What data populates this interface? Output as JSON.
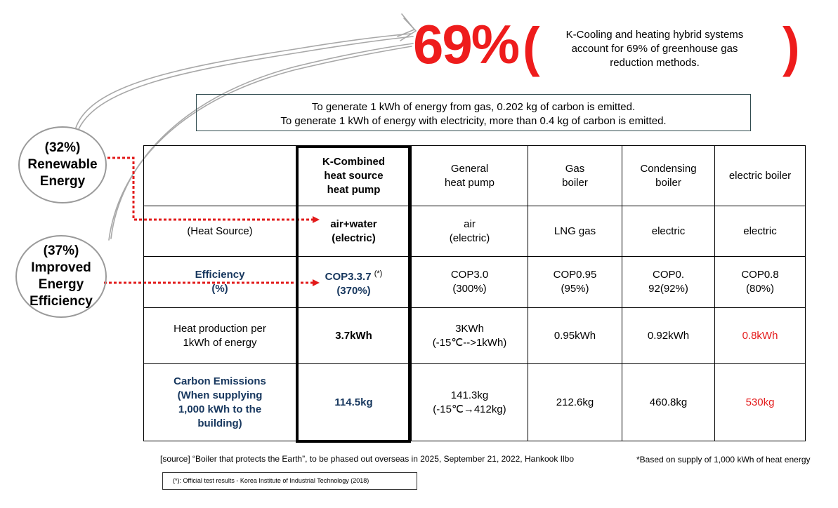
{
  "headline": {
    "percent": "69%",
    "open_paren": "(",
    "close_paren": ")",
    "line1": "K-Cooling and heating hybrid systems",
    "line2": "account for 69% of greenhouse gas",
    "line3": "reduction methods."
  },
  "info": {
    "line1": "To generate 1 kWh of energy from gas, 0.202 kg of carbon is emitted.",
    "line2": "To generate 1 kWh of energy with electricity, more than 0.4 kg of carbon is emitted."
  },
  "bubbles": {
    "renewable": {
      "pct": "(32%)",
      "l1": "Renewable",
      "l2": "Energy"
    },
    "efficiency": {
      "pct": "(37%)",
      "l1": "Improved",
      "l2": "Energy",
      "l3": "Efficiency"
    }
  },
  "table": {
    "header": {
      "k_l1": "K-Combined",
      "k_l2": "heat source",
      "k_l3": "heat pump",
      "gen_l1": "General",
      "gen_l2": "heat pump",
      "gas_l1": "Gas",
      "gas_l2": "boiler",
      "cond_l1": "Condensing",
      "cond_l2": "boiler",
      "elec": "electric boiler"
    },
    "source_row": {
      "label": "(Heat Source)",
      "k_l1": "air+water",
      "k_l2": "(electric)",
      "gen_l1": "air",
      "gen_l2": "(electric)",
      "gas": "LNG gas",
      "cond": "electric",
      "elec": "electric"
    },
    "eff_row": {
      "label_l1": "Efficiency",
      "label_l2": "(%)",
      "k_l1": "COP3.3.7",
      "k_sup": "(*)",
      "k_l2": "(370%)",
      "gen_l1": "COP3.0",
      "gen_l2": "(300%)",
      "gas_l1": "COP0.95",
      "gas_l2": "(95%)",
      "cond_l1": "COP0.",
      "cond_l2": "92(92%)",
      "elec_l1": "COP0.8",
      "elec_l2": "(80%)"
    },
    "heat_row": {
      "label_l1": "Heat production per",
      "label_l2": "1kWh of energy",
      "k": "3.7kWh",
      "gen_l1": "3KWh",
      "gen_l2": "(-15℃-->1kWh)",
      "gas": "0.95kWh",
      "cond": "0.92kWh",
      "elec": "0.8kWh"
    },
    "carbon_row": {
      "label_l1": "Carbon Emissions",
      "label_l2": "(When supplying",
      "label_l3": "1,000 kWh to the",
      "label_l4": "building)",
      "k": "114.5kg",
      "gen_l1": "141.3kg",
      "gen_l2": "(-15℃→412kg)",
      "gas": "212.6kg",
      "cond": "460.8kg",
      "elec": "530kg"
    }
  },
  "footer": {
    "source": "[source] “Boiler that protects the Earth”, to be phased out overseas in 2025, September 21, 2022, Hankook Ilbo",
    "note": "*Based on supply of 1,000 kWh of heat energy",
    "test": "(*): Official test results - Korea Institute of Industrial Technology (2018)"
  },
  "colors": {
    "accent_red": "#ee1c1c",
    "navy": "#17375e"
  }
}
